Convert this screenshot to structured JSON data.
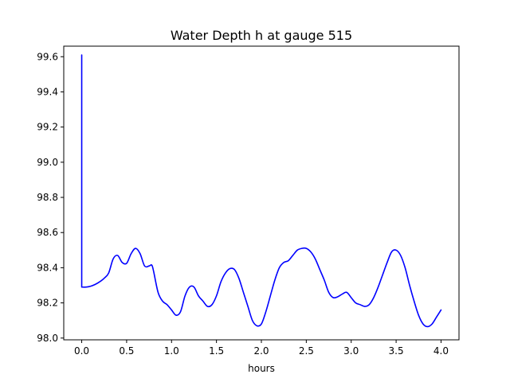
{
  "chart_data": {
    "type": "line",
    "title": "Water Depth h at gauge 515",
    "xlabel": "hours",
    "ylabel": "",
    "xlim": [
      -0.2,
      4.2
    ],
    "ylim": [
      97.99,
      99.66
    ],
    "xticks": [
      0.0,
      0.5,
      1.0,
      1.5,
      2.0,
      2.5,
      3.0,
      3.5,
      4.0
    ],
    "xtick_labels": [
      "0.0",
      "0.5",
      "1.0",
      "1.5",
      "2.0",
      "2.5",
      "3.0",
      "3.5",
      "4.0"
    ],
    "yticks": [
      98.0,
      98.2,
      98.4,
      98.6,
      98.8,
      99.0,
      99.2,
      99.4,
      99.6
    ],
    "ytick_labels": [
      "98.0",
      "98.2",
      "98.4",
      "98.6",
      "98.8",
      "99.0",
      "99.2",
      "99.4",
      "99.6"
    ],
    "grid": false,
    "color": "#0000ff",
    "series": [
      {
        "x": [
          0.0,
          0.0,
          0.05,
          0.1,
          0.15,
          0.2,
          0.25,
          0.3,
          0.35,
          0.4,
          0.45,
          0.5,
          0.55,
          0.6,
          0.65,
          0.7,
          0.75,
          0.78,
          0.8,
          0.85,
          0.9,
          0.95,
          1.0,
          1.05,
          1.1,
          1.15,
          1.2,
          1.25,
          1.3,
          1.35,
          1.4,
          1.45,
          1.5,
          1.55,
          1.6,
          1.65,
          1.7,
          1.75,
          1.8,
          1.85,
          1.9,
          1.95,
          2.0,
          2.05,
          2.1,
          2.15,
          2.2,
          2.25,
          2.3,
          2.35,
          2.4,
          2.45,
          2.5,
          2.55,
          2.6,
          2.65,
          2.7,
          2.75,
          2.8,
          2.85,
          2.9,
          2.95,
          3.0,
          3.05,
          3.1,
          3.15,
          3.2,
          3.25,
          3.3,
          3.35,
          3.4,
          3.45,
          3.5,
          3.55,
          3.6,
          3.65,
          3.7,
          3.75,
          3.8,
          3.85,
          3.9,
          3.95,
          4.0
        ],
        "y": [
          99.61,
          98.29,
          98.29,
          98.295,
          98.305,
          98.32,
          98.34,
          98.37,
          98.45,
          98.47,
          98.43,
          98.425,
          98.48,
          98.51,
          98.48,
          98.41,
          98.41,
          98.415,
          98.38,
          98.26,
          98.21,
          98.19,
          98.16,
          98.13,
          98.15,
          98.24,
          98.29,
          98.29,
          98.24,
          98.21,
          98.18,
          98.19,
          98.24,
          98.32,
          98.37,
          98.395,
          98.39,
          98.34,
          98.26,
          98.18,
          98.1,
          98.07,
          98.08,
          98.15,
          98.24,
          98.33,
          98.4,
          98.43,
          98.44,
          98.47,
          98.5,
          98.51,
          98.51,
          98.49,
          98.45,
          98.39,
          98.33,
          98.26,
          98.23,
          98.235,
          98.25,
          98.26,
          98.23,
          98.2,
          98.19,
          98.18,
          98.19,
          98.23,
          98.29,
          98.36,
          98.43,
          98.49,
          98.5,
          98.47,
          98.4,
          98.3,
          98.21,
          98.13,
          98.08,
          98.065,
          98.08,
          98.12,
          98.16
        ]
      }
    ]
  }
}
